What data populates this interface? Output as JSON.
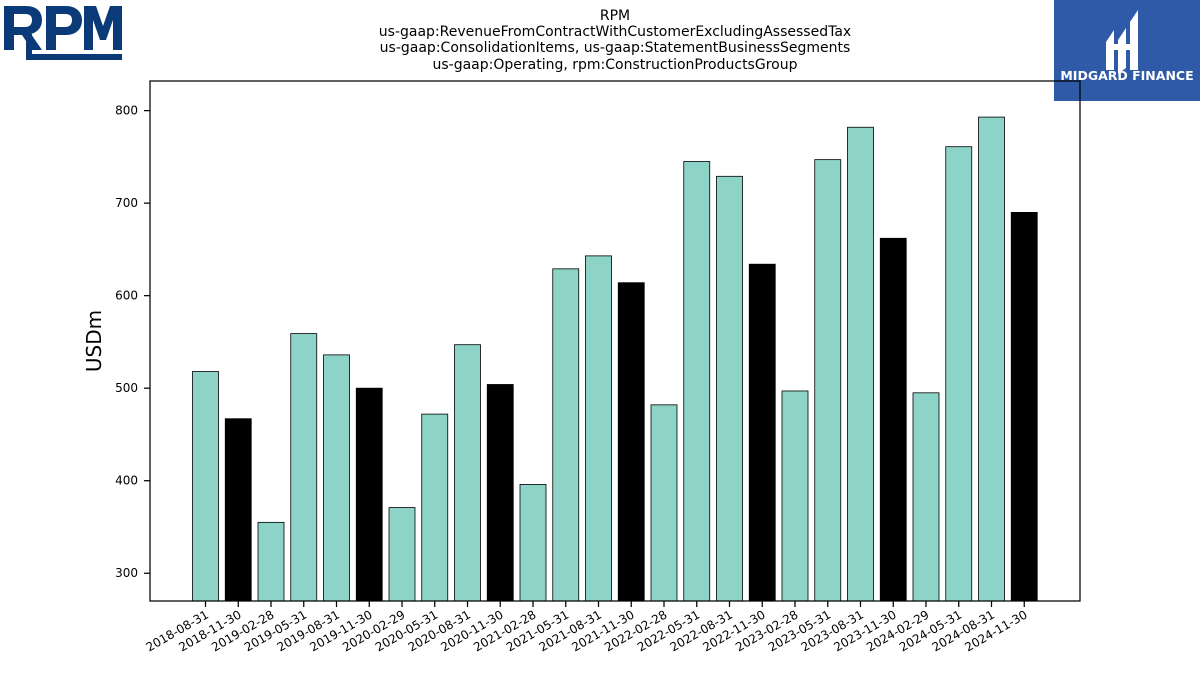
{
  "logos": {
    "left": {
      "name": "RPM",
      "color": "#0b3a78"
    },
    "right": {
      "name": "MIDGARD FINANCE",
      "background": "#2f5aa8",
      "text_color": "#ffffff"
    }
  },
  "chart_data": {
    "type": "bar",
    "title": [
      "RPM",
      "us-gaap:RevenueFromContractWithCustomerExcludingAssessedTax",
      "us-gaap:ConsolidationItems, us-gaap:StatementBusinessSegments",
      "us-gaap:Operating, rpm:ConstructionProductsGroup"
    ],
    "xlabel": "",
    "ylabel": "USDm",
    "ylim": [
      270,
      832
    ],
    "yticks": [
      300,
      400,
      500,
      600,
      700,
      800
    ],
    "grid": false,
    "categories": [
      "2018-08-31",
      "2018-11-30",
      "2019-02-28",
      "2019-05-31",
      "2019-08-31",
      "2019-11-30",
      "2020-02-29",
      "2020-05-31",
      "2020-08-31",
      "2020-11-30",
      "2021-02-28",
      "2021-05-31",
      "2021-08-31",
      "2021-11-30",
      "2022-02-28",
      "2022-05-31",
      "2022-08-31",
      "2022-11-30",
      "2023-02-28",
      "2023-05-31",
      "2023-08-31",
      "2023-11-30",
      "2024-02-29",
      "2024-05-31",
      "2024-08-31",
      "2024-11-30"
    ],
    "values": [
      518,
      467,
      355,
      559,
      536,
      500,
      371,
      472,
      547,
      504,
      396,
      629,
      643,
      614,
      482,
      745,
      729,
      634,
      497,
      747,
      782,
      662,
      495,
      761,
      793,
      690
    ],
    "highlight": [
      false,
      true,
      false,
      false,
      false,
      true,
      false,
      false,
      false,
      true,
      false,
      false,
      false,
      true,
      false,
      false,
      false,
      true,
      false,
      false,
      false,
      true,
      false,
      false,
      false,
      true
    ],
    "colors": {
      "default": "#8dd3c7",
      "highlight": "#000000",
      "edge": "#000000"
    }
  }
}
